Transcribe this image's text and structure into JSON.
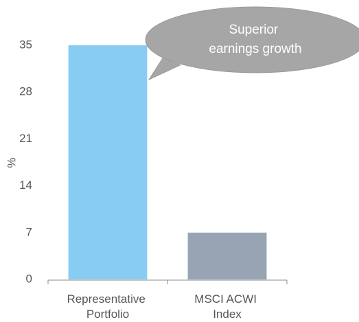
{
  "chart_data": {
    "type": "bar",
    "y_label": "%",
    "categories": [
      "Representative Portfolio",
      "MSCI ACWI Index"
    ],
    "values": [
      35,
      7
    ],
    "colors": [
      "#87cdf3",
      "#98a4b3"
    ],
    "ylim": [
      0,
      35
    ],
    "yticks": [
      0,
      7,
      14,
      21,
      28,
      35
    ],
    "annotation": "Superior earnings growth"
  }
}
